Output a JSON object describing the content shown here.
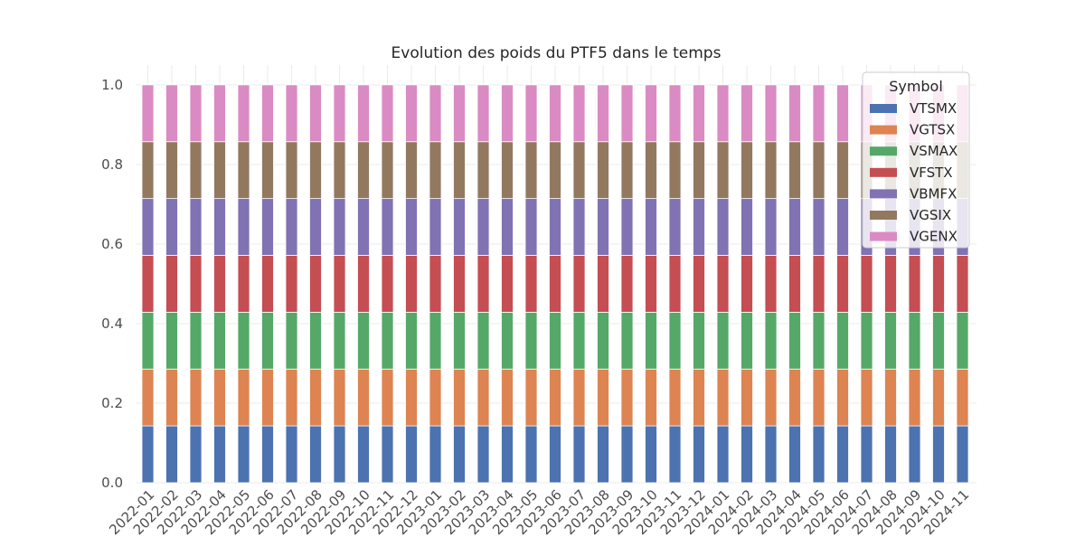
{
  "chart_data": {
    "type": "bar",
    "stacked": true,
    "title": "Evolution des poids du PTF5 dans le temps",
    "xlabel": "",
    "ylabel": "",
    "ylim": [
      0,
      1.05
    ],
    "yticks": [
      "0.0",
      "0.2",
      "0.4",
      "0.6",
      "0.8",
      "1.0"
    ],
    "grid": true,
    "legend": {
      "title": "Symbol",
      "placement": "top-right"
    },
    "categories": [
      "2022-01",
      "2022-02",
      "2022-03",
      "2022-04",
      "2022-05",
      "2022-06",
      "2022-07",
      "2022-08",
      "2022-09",
      "2022-10",
      "2022-11",
      "2022-12",
      "2023-01",
      "2023-02",
      "2023-03",
      "2023-04",
      "2023-05",
      "2023-06",
      "2023-07",
      "2023-08",
      "2023-09",
      "2023-10",
      "2023-11",
      "2023-12",
      "2024-01",
      "2024-02",
      "2024-03",
      "2024-04",
      "2024-05",
      "2024-06",
      "2024-07",
      "2024-08",
      "2024-09",
      "2024-10",
      "2024-11"
    ],
    "series": [
      {
        "name": "VTSMX",
        "color": "#4c72b0",
        "value_each_month": 0.1429
      },
      {
        "name": "VGTSX",
        "color": "#dd8452",
        "value_each_month": 0.1429
      },
      {
        "name": "VSMAX",
        "color": "#55a868",
        "value_each_month": 0.1429
      },
      {
        "name": "VFSTX",
        "color": "#c44e52",
        "value_each_month": 0.1429
      },
      {
        "name": "VBMFX",
        "color": "#8172b3",
        "value_each_month": 0.1429
      },
      {
        "name": "VGSIX",
        "color": "#937860",
        "value_each_month": 0.1429
      },
      {
        "name": "VGENX",
        "color": "#da8bc3",
        "value_each_month": 0.1429
      }
    ]
  }
}
